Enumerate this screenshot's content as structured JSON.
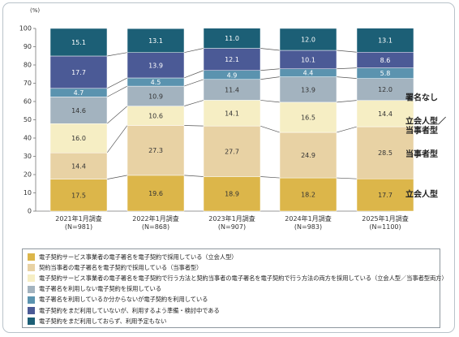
{
  "chart_data": {
    "type": "bar",
    "stacked": true,
    "unit_label": "(%)",
    "ylim": [
      0,
      100
    ],
    "yticks": [
      0,
      10,
      20,
      30,
      40,
      50,
      60,
      70,
      80,
      90,
      100
    ],
    "grid": false,
    "legend_position": "bottom",
    "categories": [
      {
        "line1": "2021年1月調査",
        "line2": "(N=981)"
      },
      {
        "line1": "2022年1月調査",
        "line2": "(N=868)"
      },
      {
        "line1": "2023年1月調査",
        "line2": "(N=907)"
      },
      {
        "line1": "2024年1月調査",
        "line2": "(N=983)"
      },
      {
        "line1": "2025年1月調査",
        "line2": "(N=1100)"
      }
    ],
    "series": [
      {
        "name": "電子契約サービス事業者の電子署名を電子契約で採用している（立会人型）",
        "color": "#dcb64a",
        "label_color": "#333333",
        "values": [
          17.5,
          19.6,
          18.9,
          18.2,
          17.7
        ]
      },
      {
        "name": "契約当事者の電子署名を電子契約で採用している（当事者型）",
        "color": "#e8d2a4",
        "label_color": "#333333",
        "values": [
          14.4,
          27.3,
          27.7,
          24.9,
          28.5
        ]
      },
      {
        "name": "電子契約サービス事業者の電子署名を電子契約で行う方法と契約当事者の電子署名を電子契約で行う方法の両方を採用している（立会人型／当事者型両方）",
        "color": "#f6eec4",
        "label_color": "#333333",
        "values": [
          16.0,
          10.6,
          14.1,
          16.5,
          14.4
        ]
      },
      {
        "name": "電子署名を利用しない電子契約を採用している",
        "color": "#a3b3bf",
        "label_color": "#333333",
        "values": [
          14.6,
          10.9,
          11.4,
          13.9,
          12.0
        ]
      },
      {
        "name": "電子署名を利用しているか分からないが電子契約を利用している",
        "color": "#5b93af",
        "label_color": "#ffffff",
        "values": [
          4.7,
          4.5,
          4.9,
          4.4,
          5.8
        ]
      },
      {
        "name": "電子契約をまだ利用していないが、利用するよう準備・検討中である",
        "color": "#4b5a96",
        "label_color": "#ffffff",
        "values": [
          17.7,
          13.9,
          12.1,
          10.1,
          8.6
        ]
      },
      {
        "name": "電子契約をまだ利用しておらず、利用予定もない",
        "color": "#1c5f76",
        "label_color": "#ffffff",
        "values": [
          15.1,
          13.1,
          11.0,
          12.0,
          13.1
        ]
      }
    ],
    "annotations": [
      {
        "text": "署名なし",
        "value": 62.5
      },
      {
        "text": "立会人型／",
        "value": 49.5
      },
      {
        "text": "当事者型",
        "value": 44.5
      },
      {
        "text": "当事者型",
        "value": 31.5
      },
      {
        "text": "立会人型",
        "value": 9.5
      }
    ]
  }
}
